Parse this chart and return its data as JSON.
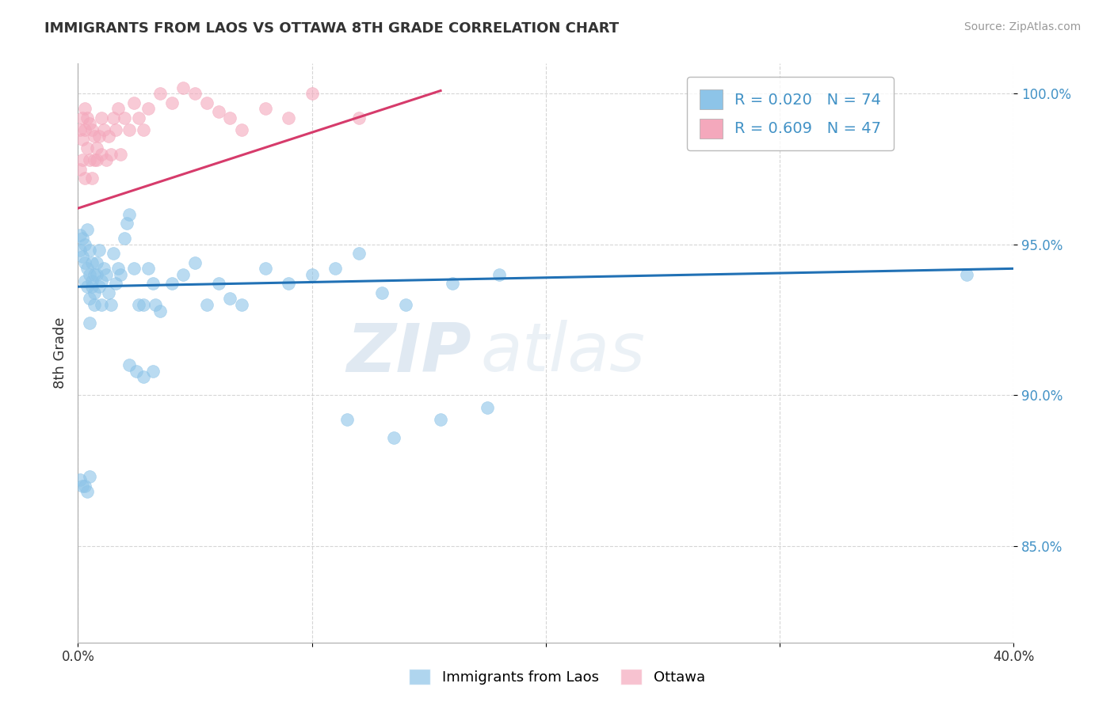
{
  "title": "IMMIGRANTS FROM LAOS VS OTTAWA 8TH GRADE CORRELATION CHART",
  "source": "Source: ZipAtlas.com",
  "ylabel": "8th Grade",
  "x_min": 0.0,
  "x_max": 0.4,
  "y_min": 0.818,
  "y_max": 1.01,
  "y_ticks": [
    0.85,
    0.9,
    0.95,
    1.0
  ],
  "y_tick_labels": [
    "85.0%",
    "90.0%",
    "95.0%",
    "100.0%"
  ],
  "legend_r1": "R = 0.020",
  "legend_n1": "N = 74",
  "legend_r2": "R = 0.609",
  "legend_n2": "N = 47",
  "color_blue": "#8dc4e8",
  "color_pink": "#f4a8bc",
  "color_blue_line": "#2171b5",
  "color_pink_line": "#d63b6b",
  "color_text_blue": "#4292c6",
  "watermark_zip": "ZIP",
  "watermark_atlas": "atlas",
  "blue_dots_x": [
    0.001,
    0.001,
    0.002,
    0.002,
    0.003,
    0.003,
    0.003,
    0.004,
    0.004,
    0.004,
    0.005,
    0.005,
    0.005,
    0.005,
    0.006,
    0.006,
    0.006,
    0.007,
    0.007,
    0.007,
    0.008,
    0.008,
    0.009,
    0.009,
    0.01,
    0.01,
    0.011,
    0.012,
    0.013,
    0.014,
    0.015,
    0.016,
    0.017,
    0.018,
    0.02,
    0.021,
    0.022,
    0.024,
    0.026,
    0.028,
    0.03,
    0.032,
    0.033,
    0.035,
    0.04,
    0.045,
    0.05,
    0.055,
    0.06,
    0.065,
    0.07,
    0.08,
    0.09,
    0.1,
    0.11,
    0.12,
    0.13,
    0.14,
    0.16,
    0.18,
    0.115,
    0.135,
    0.155,
    0.175,
    0.022,
    0.025,
    0.028,
    0.032,
    0.001,
    0.002,
    0.003,
    0.004,
    0.005,
    0.38
  ],
  "blue_dots_y": [
    0.953,
    0.948,
    0.952,
    0.946,
    0.944,
    0.95,
    0.938,
    0.942,
    0.955,
    0.936,
    0.94,
    0.948,
    0.932,
    0.924,
    0.938,
    0.944,
    0.936,
    0.93,
    0.934,
    0.94,
    0.94,
    0.944,
    0.936,
    0.948,
    0.938,
    0.93,
    0.942,
    0.94,
    0.934,
    0.93,
    0.947,
    0.937,
    0.942,
    0.94,
    0.952,
    0.957,
    0.96,
    0.942,
    0.93,
    0.93,
    0.942,
    0.937,
    0.93,
    0.928,
    0.937,
    0.94,
    0.944,
    0.93,
    0.937,
    0.932,
    0.93,
    0.942,
    0.937,
    0.94,
    0.942,
    0.947,
    0.934,
    0.93,
    0.937,
    0.94,
    0.892,
    0.886,
    0.892,
    0.896,
    0.91,
    0.908,
    0.906,
    0.908,
    0.872,
    0.87,
    0.87,
    0.868,
    0.873,
    0.94
  ],
  "pink_dots_x": [
    0.001,
    0.001,
    0.002,
    0.002,
    0.002,
    0.003,
    0.003,
    0.003,
    0.004,
    0.004,
    0.005,
    0.005,
    0.006,
    0.006,
    0.007,
    0.007,
    0.008,
    0.008,
    0.009,
    0.01,
    0.01,
    0.011,
    0.012,
    0.013,
    0.014,
    0.015,
    0.016,
    0.017,
    0.018,
    0.02,
    0.022,
    0.024,
    0.026,
    0.028,
    0.03,
    0.035,
    0.04,
    0.045,
    0.05,
    0.055,
    0.06,
    0.065,
    0.07,
    0.08,
    0.09,
    0.1,
    0.12
  ],
  "pink_dots_y": [
    0.975,
    0.988,
    0.985,
    0.978,
    0.992,
    0.972,
    0.988,
    0.995,
    0.982,
    0.992,
    0.978,
    0.99,
    0.972,
    0.988,
    0.978,
    0.986,
    0.982,
    0.978,
    0.986,
    0.98,
    0.992,
    0.988,
    0.978,
    0.986,
    0.98,
    0.992,
    0.988,
    0.995,
    0.98,
    0.992,
    0.988,
    0.997,
    0.992,
    0.988,
    0.995,
    1.0,
    0.997,
    1.002,
    1.0,
    0.997,
    0.994,
    0.992,
    0.988,
    0.995,
    0.992,
    1.0,
    0.992
  ],
  "blue_trendline_x": [
    0.0,
    0.4
  ],
  "blue_trendline_y": [
    0.936,
    0.942
  ],
  "pink_trendline_x": [
    0.0,
    0.155
  ],
  "pink_trendline_y": [
    0.962,
    1.001
  ]
}
